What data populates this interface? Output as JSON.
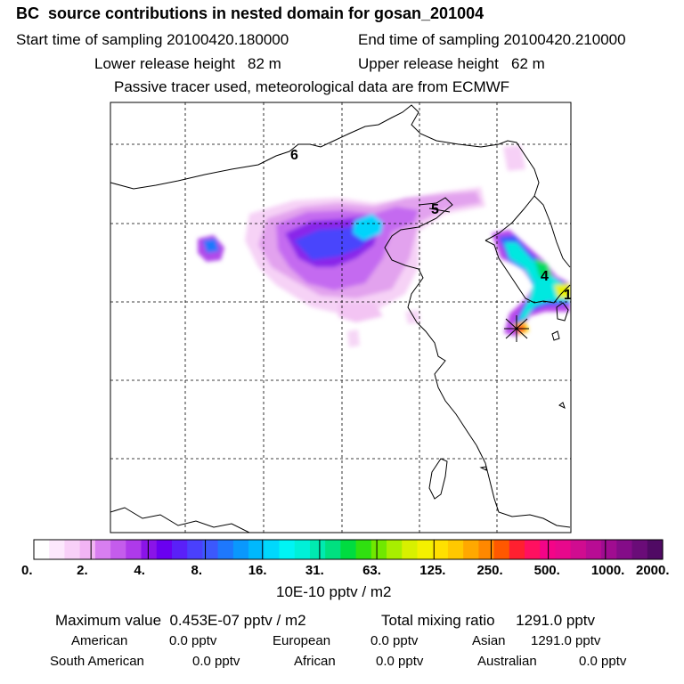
{
  "header": {
    "title": "BC  source contributions in nested domain for gosan_201004",
    "start_label": "Start time of sampling 20100420.180000",
    "end_label": "End time of sampling 20100420.210000",
    "lower_height": "Lower release height   82 m",
    "upper_height": "Upper release height   62 m",
    "tracer_note": "Passive tracer used, meteorological data are from ECMWF"
  },
  "chart_data": {
    "type": "heatmap",
    "title": "BC  source contributions in nested domain for gosan_201004",
    "colorbar": {
      "unit": "10E-10 pptv / m2",
      "ticks": [
        "0.",
        "2.",
        "4.",
        "8.",
        "16.",
        "31.",
        "63.",
        "125.",
        "250.",
        "500.",
        "1000.",
        "2000."
      ],
      "colors": [
        "#ffffff",
        "#fce8fc",
        "#f8d0f8",
        "#f2b4f4",
        "#d87ef0",
        "#c45cec",
        "#ae3aea",
        "#8a14e8",
        "#6a00f0",
        "#5a20f8",
        "#4a40fc",
        "#3c58fc",
        "#1e78fc",
        "#0a98fc",
        "#00b8fc",
        "#00d8fc",
        "#00f4f4",
        "#00f0d8",
        "#00eab0",
        "#00e080",
        "#00dc40",
        "#30e010",
        "#70e800",
        "#a8ee00",
        "#d8f000",
        "#f4f000",
        "#ffe000",
        "#ffc800",
        "#ffa800",
        "#ff8800",
        "#ff5800",
        "#ff2030",
        "#ff1060",
        "#f40488",
        "#e8088c",
        "#d00c90",
        "#b80c94",
        "#a00c90",
        "#840c88",
        "#6a0c78",
        "#500a64"
      ]
    },
    "track_points": [
      "1",
      "4",
      "5",
      "6"
    ],
    "stats": {
      "max_value": "Maximum value  0.453E-07 pptv / m2",
      "total_mixing": "Total mixing ratio     1291.0 pptv"
    },
    "regions": [
      {
        "name": "American",
        "value": "0.0 pptv"
      },
      {
        "name": "European",
        "value": "0.0 pptv"
      },
      {
        "name": "Asian",
        "value": "1291.0 pptv"
      },
      {
        "name": "South American",
        "value": "0.0 pptv"
      },
      {
        "name": "African",
        "value": "0.0 pptv"
      },
      {
        "name": "Australian",
        "value": "0.0 pptv"
      }
    ]
  }
}
